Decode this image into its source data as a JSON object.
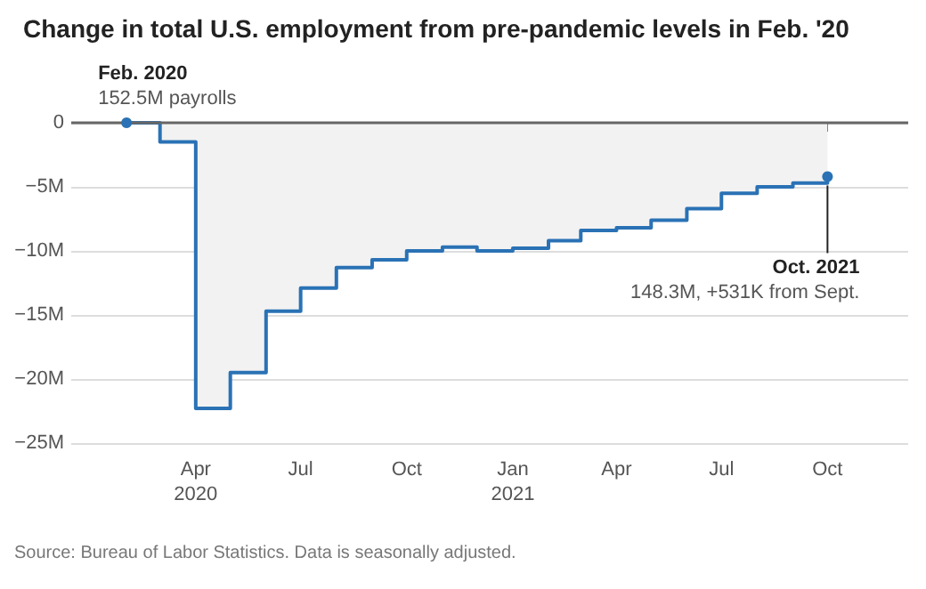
{
  "chart_data": {
    "type": "step",
    "title": "Change in total U.S. employment from pre-pandemic levels in Feb. '20",
    "x": [
      "2020-02",
      "2020-03",
      "2020-04",
      "2020-05",
      "2020-06",
      "2020-07",
      "2020-08",
      "2020-09",
      "2020-10",
      "2020-11",
      "2020-12",
      "2021-01",
      "2021-02",
      "2021-03",
      "2021-04",
      "2021-05",
      "2021-06",
      "2021-07",
      "2021-08",
      "2021-09",
      "2021-10"
    ],
    "series": [
      {
        "color": "#2a72b5",
        "values": [
          0,
          -1.5,
          -22.3,
          -19.5,
          -14.7,
          -12.9,
          -11.3,
          -10.7,
          -10.0,
          -9.7,
          -10.0,
          -9.8,
          -9.2,
          -8.4,
          -8.2,
          -7.6,
          -6.7,
          -5.5,
          -5.0,
          -4.7,
          -4.2
        ]
      }
    ],
    "xlim": [
      "2019-12-15",
      "2021-12-10"
    ],
    "xticks": [
      {
        "value": "2020-04",
        "label": "Apr\n2020"
      },
      {
        "value": "2020-07",
        "label": "Jul"
      },
      {
        "value": "2020-10",
        "label": "Oct"
      },
      {
        "value": "2021-01",
        "label": "Jan\n2021"
      },
      {
        "value": "2021-04",
        "label": "Apr"
      },
      {
        "value": "2021-07",
        "label": "Jul"
      },
      {
        "value": "2021-10",
        "label": "Oct"
      }
    ],
    "ylim": [
      -25,
      0
    ],
    "yticks": [
      {
        "value": 0,
        "label": "0"
      },
      {
        "value": -5,
        "label": "−5M"
      },
      {
        "value": -10,
        "label": "−10M"
      },
      {
        "value": -15,
        "label": "−15M"
      },
      {
        "value": -20,
        "label": "−20M"
      },
      {
        "value": -25,
        "label": "−25M"
      }
    ],
    "grid": "y",
    "marker": "none",
    "ref_lines": [
      {
        "axis": "y",
        "value": 0,
        "color": "#666666"
      }
    ],
    "annotations": [
      {
        "text": "Feb. 2020\n152.5M payrolls",
        "x": "2020-02",
        "y": 0
      },
      {
        "text": "Oct. 2021\n148.3M, +531K from Sept.",
        "x": "2021-10",
        "y": -4.2
      },
      "Source: Bureau of Labor Statistics. Data is seasonally adjusted."
    ]
  }
}
